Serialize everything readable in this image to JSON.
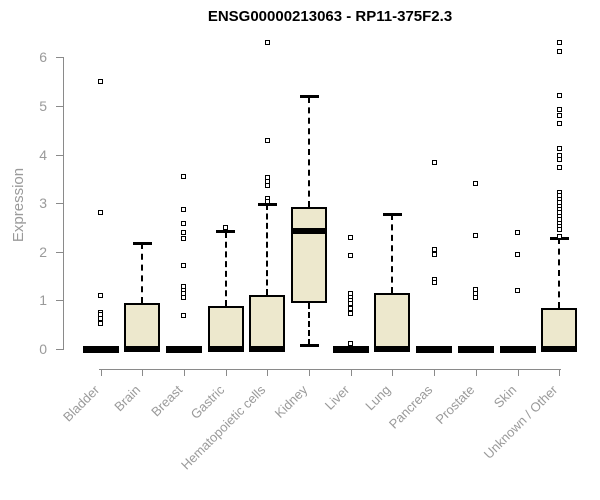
{
  "figure": {
    "background": "#ffffff"
  },
  "chart_data": {
    "type": "boxplot",
    "title": "ENSG00000213063 - RP11-375F2.3",
    "xlabel": "",
    "ylabel": "Expression",
    "ylim": [
      0,
      6.5
    ],
    "yticks": [
      0,
      1,
      2,
      3,
      4,
      5,
      6
    ],
    "grid": false,
    "legend": "none",
    "colors": {
      "box_fill": "#EDE8CD",
      "box_border": "#000000",
      "median": "#000000",
      "whisker": "#000000",
      "outlier_fill": "#FFFFFF",
      "outlier_border": "#000000",
      "axis": "#8a8a8a",
      "tick_text": "#9a9a9a",
      "title_text": "#000000"
    },
    "categories": [
      "Bladder",
      "Brain",
      "Breast",
      "Gastric",
      "Hematopoietic cells",
      "Kidney",
      "Liver",
      "Lung",
      "Pancreas",
      "Prostate",
      "Skin",
      "Unknown / Other"
    ],
    "series": [
      {
        "category": "Bladder",
        "q1": 0,
        "median": 0,
        "q3": 0,
        "whisker_low": 0,
        "whisker_high": 0,
        "outliers": [
          5.51,
          2.8,
          1.11,
          0.76,
          0.7,
          0.63,
          0.53
        ]
      },
      {
        "category": "Brain",
        "q1": 0,
        "median": 0,
        "q3": 0.95,
        "whisker_low": 0,
        "whisker_high": 2.18,
        "outliers": []
      },
      {
        "category": "Breast",
        "q1": 0,
        "median": 0,
        "q3": 0,
        "whisker_low": 0,
        "whisker_high": 0,
        "outliers": [
          3.54,
          2.88,
          2.59,
          2.39,
          2.28,
          1.71,
          1.28,
          1.21,
          1.15,
          1.05,
          0.68
        ]
      },
      {
        "category": "Gastric",
        "q1": 0,
        "median": 0,
        "q3": 0.89,
        "whisker_low": 0,
        "whisker_high": 2.41,
        "outliers": [
          2.51
        ]
      },
      {
        "category": "Hematopoietic cells",
        "q1": 0,
        "median": 0,
        "q3": 1.11,
        "whisker_low": 0,
        "whisker_high": 2.98,
        "outliers": [
          6.3,
          4.28,
          3.52,
          3.44,
          3.37,
          3.1,
          3.04
        ]
      },
      {
        "category": "Kidney",
        "q1": 0.94,
        "median": 2.43,
        "q3": 2.93,
        "whisker_low": 0.08,
        "whisker_high": 5.19,
        "outliers": []
      },
      {
        "category": "Liver",
        "q1": 0,
        "median": 0,
        "q3": 0,
        "whisker_low": 0,
        "whisker_high": 0,
        "outliers": [
          2.3,
          1.92,
          1.15,
          1.06,
          0.99,
          0.93,
          0.84,
          0.73,
          0.12
        ]
      },
      {
        "category": "Lung",
        "q1": 0,
        "median": 0,
        "q3": 1.15,
        "whisker_low": 0,
        "whisker_high": 2.77,
        "outliers": []
      },
      {
        "category": "Pancreas",
        "q1": 0,
        "median": 0,
        "q3": 0,
        "whisker_low": 0,
        "whisker_high": 0,
        "outliers": [
          3.84,
          2.04,
          1.95,
          1.42,
          1.36
        ]
      },
      {
        "category": "Prostate",
        "q1": 0,
        "median": 0,
        "q3": 0,
        "whisker_low": 0,
        "whisker_high": 0,
        "outliers": [
          3.4,
          2.33,
          1.23,
          1.15,
          1.06
        ]
      },
      {
        "category": "Skin",
        "q1": 0,
        "median": 0,
        "q3": 0,
        "whisker_low": 0,
        "whisker_high": 0,
        "outliers": [
          2.4,
          1.95,
          1.21
        ]
      },
      {
        "category": "Unknown / Other",
        "q1": 0,
        "median": 0,
        "q3": 0.84,
        "whisker_low": 0,
        "whisker_high": 2.28,
        "outliers": [
          6.3,
          6.12,
          5.21,
          4.92,
          4.81,
          4.63,
          4.13,
          3.99,
          3.89,
          3.74,
          3.22,
          3.15,
          3.08,
          3.01,
          2.94,
          2.87,
          2.8,
          2.73,
          2.66,
          2.59,
          2.52,
          2.45,
          2.31
        ]
      }
    ]
  }
}
